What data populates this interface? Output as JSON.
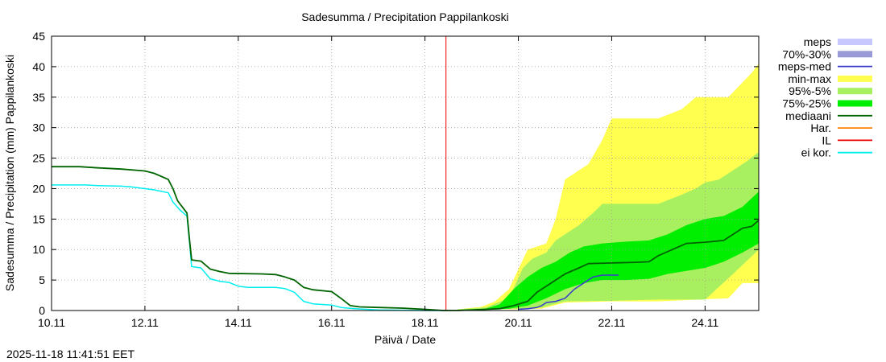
{
  "chart_data": {
    "type": "area",
    "title": "Sadesumma / Precipitation  Pappilankoski",
    "xlabel": "Päivä / Date",
    "ylabel": "Sadesumma / Precipitation (mm)  Pappilankoski",
    "timestamp": "2025-11-18 11:41:51 EET",
    "x_unit": "days since 10.11",
    "xlim": [
      0,
      15.15
    ],
    "ylim": [
      0,
      45
    ],
    "yticks": [
      0,
      5,
      10,
      15,
      20,
      25,
      30,
      35,
      40,
      45
    ],
    "yticklabels": [
      "0",
      "5",
      "10",
      "15",
      "20",
      "25",
      "30",
      "35",
      "40",
      "45"
    ],
    "xticks": [
      0,
      2,
      4,
      6,
      8,
      10,
      12,
      14
    ],
    "xticklabels": [
      "10.11",
      "12.11",
      "14.11",
      "16.11",
      "18.11",
      "20.11",
      "22.11",
      "24.11"
    ],
    "grid": true,
    "forecast_start_x": 8.45,
    "legend_position": "right",
    "legend": [
      {
        "label": "meps",
        "type": "box",
        "color": "#c8c8ff"
      },
      {
        "label": "70%-30%",
        "type": "box",
        "color": "#9a9ad8"
      },
      {
        "label": "meps-med",
        "type": "line",
        "color": "#3a3ad0"
      },
      {
        "label": "min-max",
        "type": "box",
        "color": "#ffff50"
      },
      {
        "label": "95%-5%",
        "type": "box",
        "color": "#a8f060"
      },
      {
        "label": "75%-25%",
        "type": "box",
        "color": "#00ee00"
      },
      {
        "label": "mediaani",
        "type": "line",
        "color": "#006400"
      },
      {
        "label": "Har.",
        "type": "line",
        "color": "#ff8000"
      },
      {
        "label": "IL",
        "type": "line",
        "color": "#ee0000"
      },
      {
        "label": "ei kor.",
        "type": "line",
        "color": "#00eeee"
      }
    ],
    "bands": [
      {
        "name": "min-max",
        "color": "#ffff50",
        "upper": [
          [
            8.7,
            0.2
          ],
          [
            9.2,
            0.6
          ],
          [
            9.5,
            1.5
          ],
          [
            9.8,
            3.5
          ],
          [
            10.2,
            10
          ],
          [
            10.6,
            11
          ],
          [
            10.8,
            15
          ],
          [
            11.0,
            21.5
          ],
          [
            11.5,
            24
          ],
          [
            11.8,
            28
          ],
          [
            12.0,
            31.5
          ],
          [
            13.0,
            31.5
          ],
          [
            13.5,
            33
          ],
          [
            13.8,
            35
          ],
          [
            14.0,
            35
          ],
          [
            14.5,
            35
          ],
          [
            15.0,
            39
          ],
          [
            15.15,
            40.5
          ]
        ],
        "lower": [
          [
            8.7,
            0
          ],
          [
            9.5,
            0.2
          ],
          [
            10.0,
            0.2
          ],
          [
            10.5,
            0.3
          ],
          [
            11.0,
            1.3
          ],
          [
            12.0,
            1.5
          ],
          [
            13.0,
            1.5
          ],
          [
            14.5,
            2
          ],
          [
            14.8,
            4.5
          ],
          [
            15.15,
            4.5
          ]
        ]
      },
      {
        "name": "95%-5%",
        "color": "#a8f060",
        "upper": [
          [
            8.7,
            0.2
          ],
          [
            9.3,
            0.5
          ],
          [
            9.8,
            2.0
          ],
          [
            10.1,
            7
          ],
          [
            10.3,
            8.5
          ],
          [
            10.6,
            9.5
          ],
          [
            10.8,
            11.5
          ],
          [
            11.0,
            12.5
          ],
          [
            11.3,
            14
          ],
          [
            11.6,
            16
          ],
          [
            11.8,
            17.5
          ],
          [
            12.5,
            17.5
          ],
          [
            13.0,
            17.5
          ],
          [
            13.5,
            19
          ],
          [
            13.8,
            20
          ],
          [
            14.0,
            21
          ],
          [
            14.3,
            21.5
          ],
          [
            14.6,
            23
          ],
          [
            14.9,
            24.5
          ],
          [
            15.15,
            26
          ]
        ],
        "lower": [
          [
            8.7,
            0
          ],
          [
            9.5,
            0.2
          ],
          [
            10.0,
            0.3
          ],
          [
            10.5,
            0.5
          ],
          [
            11.0,
            1.5
          ],
          [
            12.0,
            1.6
          ],
          [
            13.0,
            1.8
          ],
          [
            14.0,
            1.8
          ],
          [
            14.6,
            6
          ],
          [
            15.15,
            10
          ]
        ]
      },
      {
        "name": "75%-25%",
        "color": "#00ee00",
        "upper": [
          [
            8.7,
            0.1
          ],
          [
            9.3,
            0.3
          ],
          [
            9.6,
            1
          ],
          [
            9.9,
            3.5
          ],
          [
            10.2,
            5.5
          ],
          [
            10.5,
            7
          ],
          [
            10.8,
            8
          ],
          [
            11.1,
            9.5
          ],
          [
            11.4,
            10.5
          ],
          [
            11.8,
            11
          ],
          [
            12.3,
            11.3
          ],
          [
            12.8,
            11.5
          ],
          [
            13.2,
            12.5
          ],
          [
            13.6,
            14
          ],
          [
            14.0,
            15
          ],
          [
            14.4,
            15.5
          ],
          [
            14.8,
            17
          ],
          [
            15.15,
            19.5
          ]
        ],
        "lower": [
          [
            8.7,
            0
          ],
          [
            9.3,
            0.1
          ],
          [
            9.8,
            0.3
          ],
          [
            10.2,
            0.8
          ],
          [
            10.6,
            2
          ],
          [
            11.0,
            3.5
          ],
          [
            11.4,
            4.5
          ],
          [
            11.8,
            5
          ],
          [
            12.3,
            5
          ],
          [
            12.8,
            5.2
          ],
          [
            13.2,
            6
          ],
          [
            13.6,
            6.5
          ],
          [
            14.0,
            7
          ],
          [
            14.4,
            8
          ],
          [
            14.8,
            9.5
          ],
          [
            15.15,
            11
          ]
        ]
      }
    ],
    "series": [
      {
        "name": "ei kor.",
        "color": "#00eeee",
        "width": 1.5,
        "points": [
          [
            0,
            20.6
          ],
          [
            0.7,
            20.6
          ],
          [
            1.0,
            20.5
          ],
          [
            1.5,
            20.4
          ],
          [
            1.7,
            20.3
          ],
          [
            1.9,
            20.1
          ],
          [
            2.2,
            19.8
          ],
          [
            2.5,
            19.3
          ],
          [
            2.6,
            17.8
          ],
          [
            2.75,
            16.5
          ],
          [
            2.9,
            15.5
          ],
          [
            2.97,
            10
          ],
          [
            3.0,
            7.2
          ],
          [
            3.2,
            7.0
          ],
          [
            3.4,
            5.2
          ],
          [
            3.6,
            4.8
          ],
          [
            3.8,
            4.6
          ],
          [
            4.0,
            4.0
          ],
          [
            4.2,
            3.8
          ],
          [
            4.8,
            3.8
          ],
          [
            5.0,
            3.6
          ],
          [
            5.2,
            3.0
          ],
          [
            5.4,
            1.5
          ],
          [
            5.6,
            1.1
          ],
          [
            6.0,
            0.9
          ],
          [
            6.2,
            0.5
          ],
          [
            6.5,
            0.3
          ],
          [
            7.0,
            0.1
          ],
          [
            8.0,
            0
          ],
          [
            8.45,
            0
          ]
        ]
      },
      {
        "name": "mediaani",
        "color": "#006400",
        "width": 1.8,
        "points": [
          [
            0,
            23.6
          ],
          [
            0.6,
            23.6
          ],
          [
            1.0,
            23.4
          ],
          [
            1.5,
            23.2
          ],
          [
            2.0,
            22.9
          ],
          [
            2.2,
            22.5
          ],
          [
            2.5,
            21.5
          ],
          [
            2.6,
            20.0
          ],
          [
            2.7,
            18.0
          ],
          [
            2.8,
            17.0
          ],
          [
            2.9,
            16.0
          ],
          [
            2.95,
            12
          ],
          [
            3.0,
            8.3
          ],
          [
            3.2,
            8.1
          ],
          [
            3.4,
            6.8
          ],
          [
            3.6,
            6.4
          ],
          [
            3.8,
            6.1
          ],
          [
            4.5,
            6.0
          ],
          [
            4.8,
            5.9
          ],
          [
            5.0,
            5.5
          ],
          [
            5.2,
            5.0
          ],
          [
            5.4,
            3.8
          ],
          [
            5.6,
            3.4
          ],
          [
            6.0,
            3.1
          ],
          [
            6.2,
            2.0
          ],
          [
            6.4,
            0.8
          ],
          [
            6.6,
            0.6
          ],
          [
            7.0,
            0.5
          ],
          [
            7.5,
            0.4
          ],
          [
            8.0,
            0.2
          ],
          [
            8.4,
            0
          ],
          [
            8.7,
            0
          ],
          [
            9.3,
            0.2
          ],
          [
            9.6,
            0.3
          ],
          [
            9.9,
            0.8
          ],
          [
            10.2,
            1.5
          ],
          [
            10.4,
            3
          ],
          [
            10.6,
            4
          ],
          [
            10.8,
            5
          ],
          [
            11.0,
            6
          ],
          [
            11.3,
            7
          ],
          [
            11.5,
            7.7
          ],
          [
            12.0,
            7.8
          ],
          [
            12.5,
            7.9
          ],
          [
            12.8,
            8.0
          ],
          [
            13.0,
            9
          ],
          [
            13.3,
            10
          ],
          [
            13.6,
            11
          ],
          [
            14.0,
            11.2
          ],
          [
            14.4,
            11.5
          ],
          [
            14.8,
            13.5
          ],
          [
            15.0,
            13.8
          ],
          [
            15.15,
            14.8
          ]
        ]
      },
      {
        "name": "meps-med",
        "color": "#3a3ad0",
        "width": 1.5,
        "points": [
          [
            10.0,
            0.2
          ],
          [
            10.2,
            0.3
          ],
          [
            10.4,
            0.5
          ],
          [
            10.5,
            0.8
          ],
          [
            10.6,
            1.3
          ],
          [
            10.8,
            1.5
          ],
          [
            11.0,
            2.0
          ],
          [
            11.2,
            3.5
          ],
          [
            11.4,
            4.5
          ],
          [
            11.6,
            5.5
          ],
          [
            11.8,
            5.8
          ],
          [
            12.0,
            5.8
          ],
          [
            12.15,
            5.8
          ]
        ]
      }
    ]
  }
}
